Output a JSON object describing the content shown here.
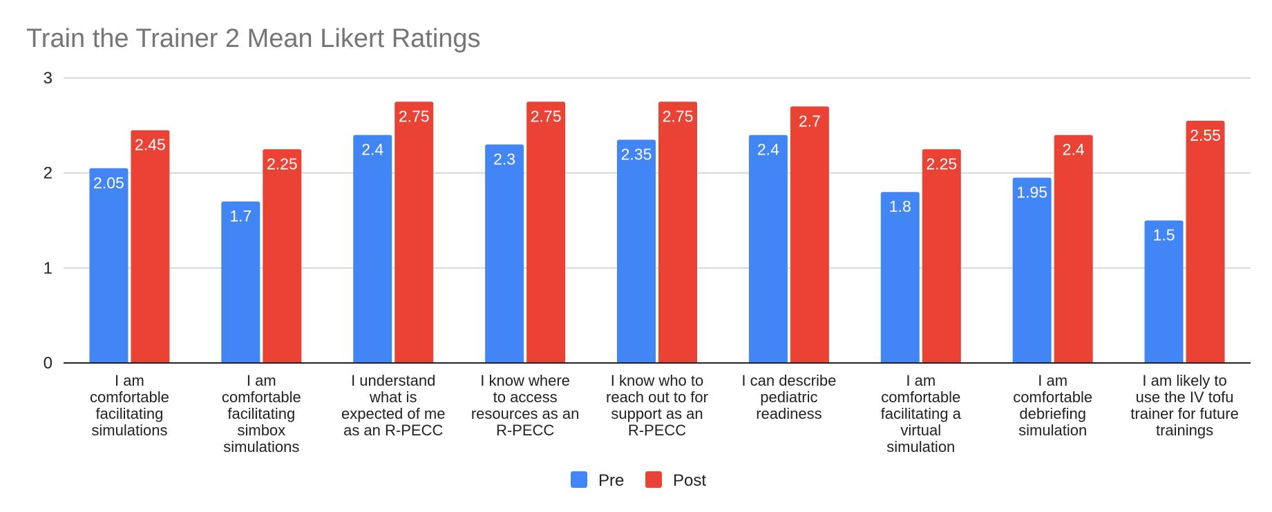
{
  "chart_data": {
    "type": "bar",
    "title": "Train the Trainer 2 Mean Likert Ratings",
    "xlabel": "",
    "ylabel": "",
    "ylim": [
      0,
      3
    ],
    "yticks": [
      "0",
      "1",
      "2",
      "3"
    ],
    "grid": true,
    "legend_position": "bottom",
    "categories": [
      [
        "I am",
        "comfortable",
        "facilitating",
        "simulations"
      ],
      [
        "I am",
        "comfortable",
        "facilitating",
        "simbox",
        "simulations"
      ],
      [
        "I understand",
        "what is",
        "expected of me",
        "as an R-PECC"
      ],
      [
        "I know where",
        "to access",
        "resources as an",
        "R-PECC"
      ],
      [
        "I know who to",
        "reach out to for",
        "support as an",
        "R-PECC"
      ],
      [
        "I can describe",
        "pediatric",
        "readiness"
      ],
      [
        "I am",
        "comfortable",
        "facilitating a",
        "virtual",
        "simulation"
      ],
      [
        "I am",
        "comfortable",
        "debriefing",
        "simulation"
      ],
      [
        "I am likely to",
        "use the IV tofu",
        "trainer for future",
        "trainings"
      ]
    ],
    "series": [
      {
        "name": "Pre",
        "color": "#4285f4",
        "values": [
          2.05,
          1.7,
          2.4,
          2.3,
          2.35,
          2.4,
          1.8,
          1.95,
          1.5
        ]
      },
      {
        "name": "Post",
        "color": "#ea4335",
        "values": [
          2.45,
          2.25,
          2.75,
          2.75,
          2.75,
          2.7,
          2.25,
          2.4,
          2.55
        ]
      }
    ]
  }
}
